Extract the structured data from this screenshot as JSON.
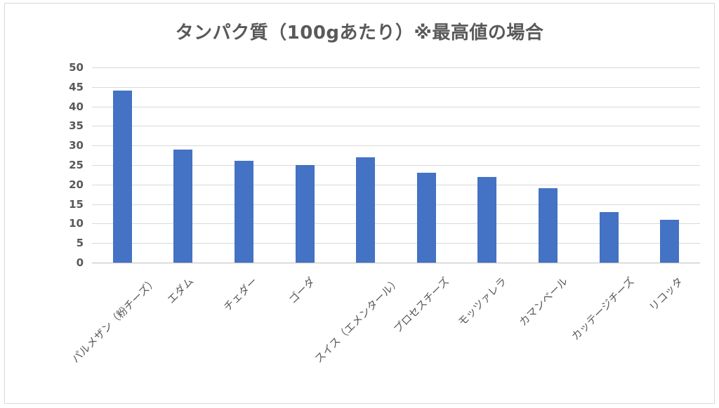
{
  "chart_data": {
    "type": "bar",
    "title": "タンパク質（100gあたり）※最高値の場合",
    "xlabel": "",
    "ylabel": "",
    "categories": [
      "パルメザン（粉チーズ）",
      "エダム",
      "チェダー",
      "ゴーダ",
      "スイス（エメンタール）",
      "プロセスチーズ",
      "モッツァレラ",
      "カマンベール",
      "カッテージチーズ",
      "リコッタ"
    ],
    "values": [
      44,
      29,
      26,
      25,
      27,
      23,
      22,
      19,
      13,
      11
    ],
    "ylim": [
      0,
      50
    ],
    "yticks": [
      0,
      5,
      10,
      15,
      20,
      25,
      30,
      35,
      40,
      45,
      50
    ],
    "grid": true,
    "legend": null,
    "bar_color": "#4472c4"
  }
}
